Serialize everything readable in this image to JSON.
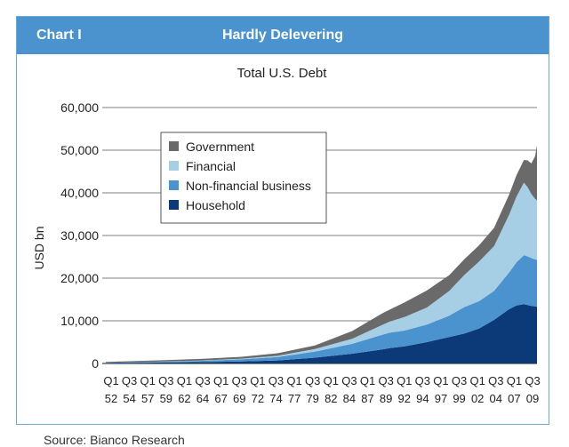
{
  "header": {
    "label": "Chart I",
    "title": "Hardly Delevering"
  },
  "source": "Source: Bianco Research",
  "colors": {
    "header_bg": "#4a93cf",
    "government": "#6a6a6a",
    "financial": "#a6cfe6",
    "nonfinancial": "#4a93cf",
    "household": "#0c3a78"
  },
  "chart_data": {
    "type": "area",
    "stacked": true,
    "title": "Total U.S. Debt",
    "ylabel": "USD bn",
    "xlabel": "",
    "ylim": [
      0,
      60000
    ],
    "yticks": [
      "0",
      "10,000",
      "20,000",
      "30,000",
      "40,000",
      "50,000",
      "60,000"
    ],
    "xtick_labels": [
      [
        "Q1",
        "52"
      ],
      [
        "Q3",
        "54"
      ],
      [
        "Q1",
        "57"
      ],
      [
        "Q3",
        "59"
      ],
      [
        "Q1",
        "62"
      ],
      [
        "Q3",
        "64"
      ],
      [
        "Q1",
        "67"
      ],
      [
        "Q3",
        "69"
      ],
      [
        "Q1",
        "72"
      ],
      [
        "Q3",
        "74"
      ],
      [
        "Q1",
        "77"
      ],
      [
        "Q3",
        "79"
      ],
      [
        "Q1",
        "82"
      ],
      [
        "Q3",
        "84"
      ],
      [
        "Q1",
        "87"
      ],
      [
        "Q3",
        "89"
      ],
      [
        "Q1",
        "92"
      ],
      [
        "Q3",
        "94"
      ],
      [
        "Q1",
        "97"
      ],
      [
        "Q3",
        "99"
      ],
      [
        "Q1",
        "02"
      ],
      [
        "Q3",
        "04"
      ],
      [
        "Q1",
        "07"
      ],
      [
        "Q3",
        "09"
      ]
    ],
    "grid": true,
    "legend_position": "top-left",
    "x": [
      1952,
      1955,
      1960,
      1965,
      1970,
      1975,
      1980,
      1985,
      1989,
      1990,
      1992,
      1995,
      1998,
      2000,
      2002,
      2004,
      2006,
      2007,
      2008,
      2008.5,
      2009,
      2009.5,
      2009.75
    ],
    "series": [
      {
        "name": "Household",
        "values": [
          60,
          120,
          220,
          330,
          450,
          700,
          1350,
          2300,
          3300,
          3600,
          4000,
          5000,
          6200,
          7000,
          8200,
          10200,
          12700,
          13600,
          13900,
          13700,
          13500,
          13400,
          13300
        ]
      },
      {
        "name": "Non-financial business",
        "values": [
          80,
          130,
          200,
          300,
          500,
          800,
          1450,
          2300,
          3400,
          3600,
          3700,
          4100,
          5000,
          6200,
          6400,
          6800,
          8600,
          10100,
          11500,
          11400,
          11200,
          11000,
          11000
        ]
      },
      {
        "name": "Financial",
        "values": [
          10,
          20,
          50,
          80,
          150,
          300,
          600,
          1200,
          2300,
          2600,
          3200,
          4000,
          5800,
          7500,
          9300,
          10500,
          13500,
          15400,
          17000,
          16200,
          15000,
          14200,
          14000
        ]
      },
      {
        "name": "Government",
        "values": [
          200,
          250,
          300,
          400,
          450,
          600,
          800,
          1800,
          2700,
          2800,
          3400,
          4000,
          3700,
          3700,
          3800,
          4300,
          4700,
          5000,
          5300,
          6300,
          7200,
          10000,
          12800
        ]
      }
    ]
  }
}
